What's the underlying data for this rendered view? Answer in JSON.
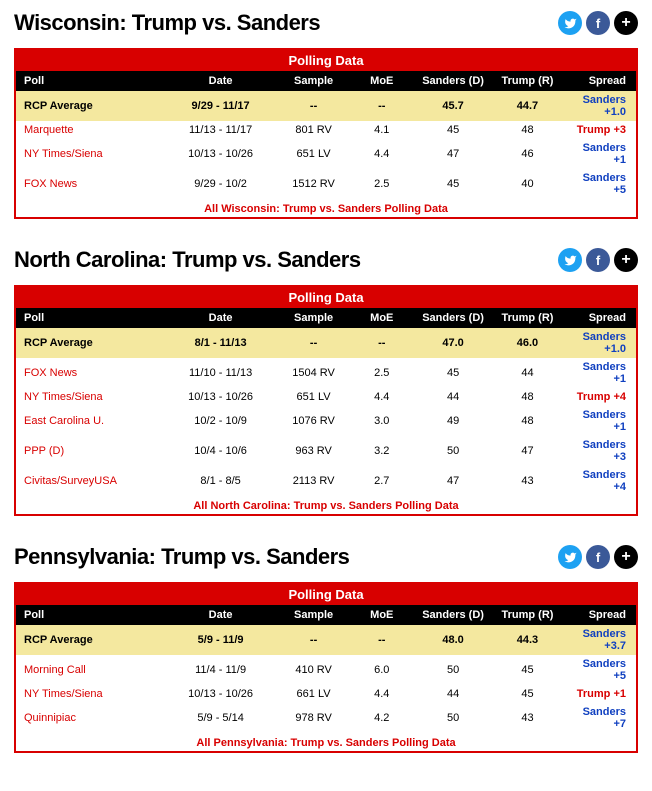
{
  "columns": {
    "poll": "Poll",
    "date": "Date",
    "sample": "Sample",
    "moe": "MoE",
    "cand1": "Sanders (D)",
    "cand2": "Trump (R)",
    "spread": "Spread"
  },
  "share": {
    "twitter": "t",
    "facebook": "f",
    "plus": "+"
  },
  "table_title": "Polling Data",
  "sections": [
    {
      "title": "Wisconsin: Trump vs. Sanders",
      "footer": "All Wisconsin: Trump vs. Sanders Polling Data",
      "rows": [
        {
          "avg": true,
          "poll": "RCP Average",
          "date": "9/29 - 11/17",
          "sample": "--",
          "moe": "--",
          "c1": "45.7",
          "c2": "44.7",
          "spread": "Sanders +1.0",
          "side": "sanders"
        },
        {
          "poll": "Marquette",
          "date": "11/13 - 11/17",
          "sample": "801 RV",
          "moe": "4.1",
          "c1": "45",
          "c2": "48",
          "spread": "Trump +3",
          "side": "trump"
        },
        {
          "poll": "NY Times/Siena",
          "date": "10/13 - 10/26",
          "sample": "651 LV",
          "moe": "4.4",
          "c1": "47",
          "c2": "46",
          "spread": "Sanders +1",
          "side": "sanders"
        },
        {
          "poll": "FOX News",
          "date": "9/29 - 10/2",
          "sample": "1512 RV",
          "moe": "2.5",
          "c1": "45",
          "c2": "40",
          "spread": "Sanders +5",
          "side": "sanders"
        }
      ]
    },
    {
      "title": "North Carolina: Trump vs. Sanders",
      "footer": "All North Carolina: Trump vs. Sanders Polling Data",
      "rows": [
        {
          "avg": true,
          "poll": "RCP Average",
          "date": "8/1 - 11/13",
          "sample": "--",
          "moe": "--",
          "c1": "47.0",
          "c2": "46.0",
          "spread": "Sanders +1.0",
          "side": "sanders"
        },
        {
          "poll": "FOX News",
          "date": "11/10 - 11/13",
          "sample": "1504 RV",
          "moe": "2.5",
          "c1": "45",
          "c2": "44",
          "spread": "Sanders +1",
          "side": "sanders"
        },
        {
          "poll": "NY Times/Siena",
          "date": "10/13 - 10/26",
          "sample": "651 LV",
          "moe": "4.4",
          "c1": "44",
          "c2": "48",
          "spread": "Trump +4",
          "side": "trump"
        },
        {
          "poll": "East Carolina U.",
          "date": "10/2 - 10/9",
          "sample": "1076 RV",
          "moe": "3.0",
          "c1": "49",
          "c2": "48",
          "spread": "Sanders +1",
          "side": "sanders"
        },
        {
          "poll": "PPP (D)",
          "date": "10/4 - 10/6",
          "sample": "963 RV",
          "moe": "3.2",
          "c1": "50",
          "c2": "47",
          "spread": "Sanders +3",
          "side": "sanders"
        },
        {
          "poll": "Civitas/SurveyUSA",
          "date": "8/1 - 8/5",
          "sample": "2113 RV",
          "moe": "2.7",
          "c1": "47",
          "c2": "43",
          "spread": "Sanders +4",
          "side": "sanders"
        }
      ]
    },
    {
      "title": "Pennsylvania: Trump vs. Sanders",
      "footer": "All Pennsylvania: Trump vs. Sanders Polling Data",
      "rows": [
        {
          "avg": true,
          "poll": "RCP Average",
          "date": "5/9 - 11/9",
          "sample": "--",
          "moe": "--",
          "c1": "48.0",
          "c2": "44.3",
          "spread": "Sanders +3.7",
          "side": "sanders"
        },
        {
          "poll": "Morning Call",
          "date": "11/4 - 11/9",
          "sample": "410 RV",
          "moe": "6.0",
          "c1": "50",
          "c2": "45",
          "spread": "Sanders +5",
          "side": "sanders"
        },
        {
          "poll": "NY Times/Siena",
          "date": "10/13 - 10/26",
          "sample": "661 LV",
          "moe": "4.4",
          "c1": "44",
          "c2": "45",
          "spread": "Trump +1",
          "side": "trump"
        },
        {
          "poll": "Quinnipiac",
          "date": "5/9 - 5/14",
          "sample": "978 RV",
          "moe": "4.2",
          "c1": "50",
          "c2": "43",
          "spread": "Sanders +7",
          "side": "sanders"
        }
      ]
    }
  ]
}
